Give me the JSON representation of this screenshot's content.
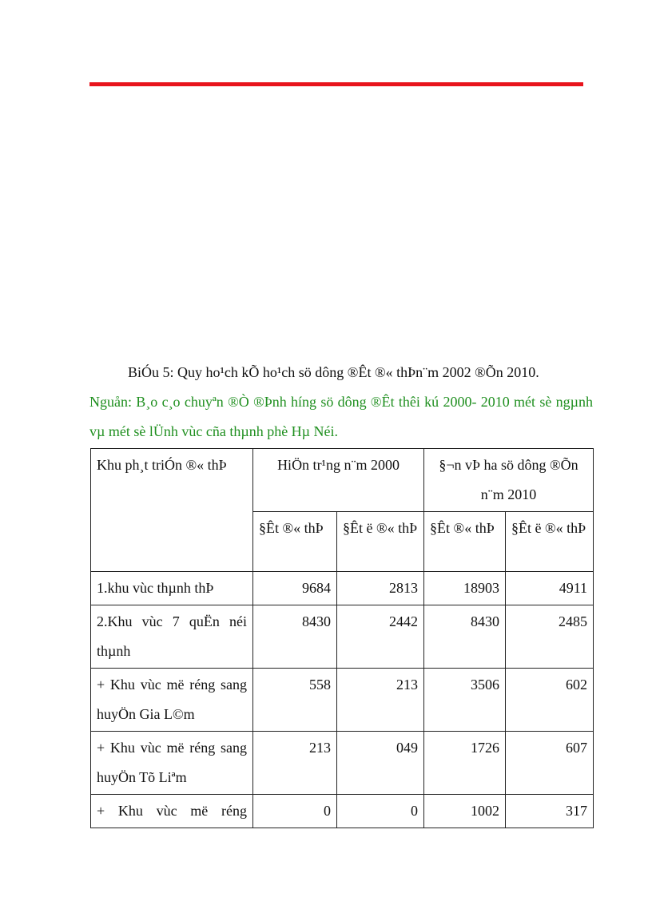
{
  "accent_color": "#e8141c",
  "source_color": "#1f8f1f",
  "title": "BiÓu 5: Quy ho¹ch kÕ ho¹ch sö dông ®Êt ®« thÞn¨m  2002 ®Õn 2010.",
  "source": "Nguån:  B¸o c¸o chuyªn  ®Ò ®Þnh h­íng  sö dông ®Êt thêi kú 2000- 2010 mét sè ngµnh  vµ mét sè lÜnh vùc cña thµnh  phè Hµ Néi.",
  "table": {
    "header": {
      "col1": "Khu ph¸t triÓn ®« thÞ",
      "group1": "HiÖn tr¹ng n¨m  2000",
      "group2": "§¬n vÞ ha sö dông ®Õn n¨m 2010",
      "sub": [
        "§Êt ®« thÞ",
        "§Êt  ë  ®« thÞ",
        "§Êt  ®« thÞ",
        "§Êt  ë  ®« thÞ"
      ]
    },
    "rows": [
      {
        "label": "1.khu  vùc thµnh  thÞ",
        "values": [
          "9684",
          "2813",
          "18903",
          "4911"
        ]
      },
      {
        "label": "2.Khu  vùc  7  quËn  néi thµnh",
        "values": [
          "8430",
          "2442",
          "8430",
          "2485"
        ]
      },
      {
        "label": "+ Khu  vùc  më  réng sang huyÖn  Gia L©m",
        "values": [
          "558",
          "213",
          "3506",
          "602"
        ]
      },
      {
        "label": "+ Khu  vùc  më  réng sang huyÖn  Tõ Liªm",
        "values": [
          "213",
          "049",
          "1726",
          "607"
        ]
      },
      {
        "label": "+ Khu  vùc  më  réng",
        "values": [
          "0",
          "0",
          "1002",
          "317"
        ]
      }
    ]
  }
}
